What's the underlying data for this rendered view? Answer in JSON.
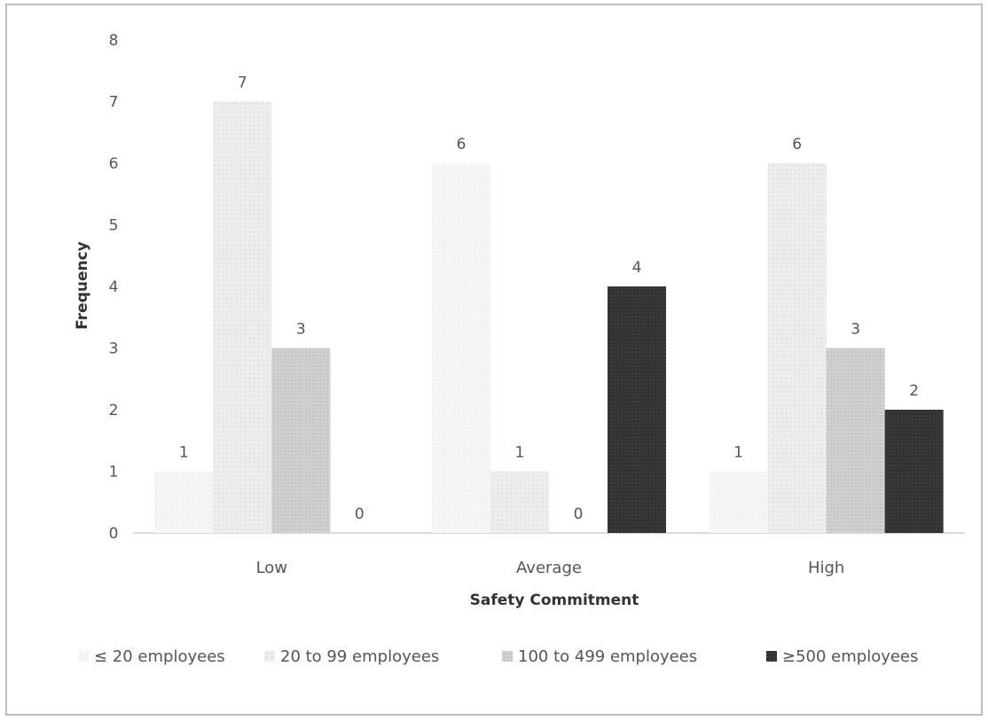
{
  "chart_data": {
    "type": "bar",
    "title": "",
    "xlabel": "Safety Commitment",
    "ylabel": "Frequency",
    "ylim": [
      0,
      8
    ],
    "yticks": [
      0,
      1,
      2,
      3,
      4,
      5,
      6,
      7,
      8
    ],
    "grid": false,
    "legend_position": "bottom",
    "categories": [
      "Low",
      "Average",
      "High"
    ],
    "series": [
      {
        "name": "≤ 20 employees",
        "values": [
          1,
          6,
          1
        ],
        "color": "#f3f3f3"
      },
      {
        "name": "20 to 99 employees",
        "values": [
          7,
          1,
          6
        ],
        "color": "#e6e6e6"
      },
      {
        "name": "100 to 499 employees",
        "values": [
          3,
          0,
          3
        ],
        "color": "#c8c8c8"
      },
      {
        "name": "≥500 employees",
        "values": [
          0,
          4,
          2
        ],
        "color": "#3a3a3a"
      }
    ]
  }
}
